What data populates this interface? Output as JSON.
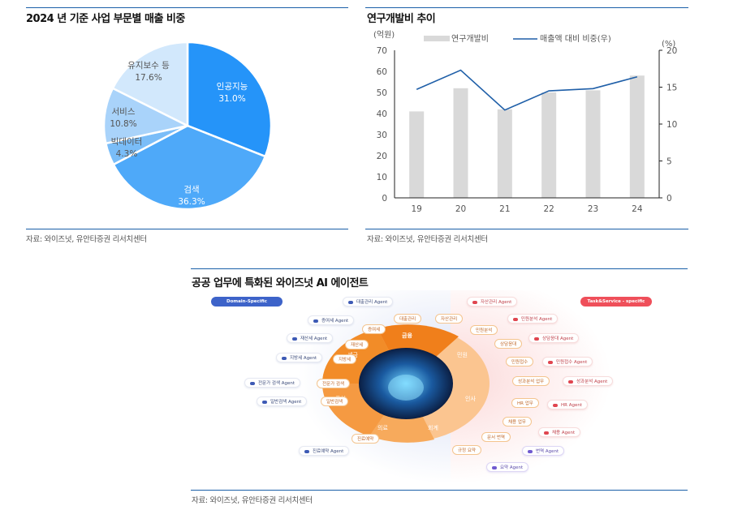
{
  "left_panel": {
    "title": "2024 년 기준 사업 부문별 매출 비중",
    "source": "자료: 와이즈넛, 유안타증권 리서치센터"
  },
  "right_panel": {
    "title": "연구개발비 추이",
    "source": "자료: 와이즈넛, 유안타증권 리서치센터",
    "left_unit": "(억원)",
    "right_unit": "(%)",
    "legend_bar": "연구개발비",
    "legend_line": "매출액 대비 비중(우)"
  },
  "bottom_panel": {
    "title": "공공 업무에 특화된 와이즈넛 AI 에이전트",
    "source": "자료: 와이즈넛, 유안타증권 리서치센터",
    "domain_badge": "Domain-Specific",
    "task_badge": "Task&Service - specific",
    "ring_segments": [
      "금융",
      "민원",
      "인사",
      "회계",
      "의료",
      "특허",
      "세금"
    ],
    "left_tasks": [
      "대출관리",
      "증여세",
      "재산세",
      "지방세",
      "전문가 검색",
      "일반검색",
      "진료예약"
    ],
    "left_agents": [
      "대출관리 Agent",
      "증여세 Agent",
      "재산세 Agent",
      "지방세 Agent",
      "전문가 검색 Agent",
      "일반검색 Agent",
      "진료예약 Agent"
    ],
    "right_tasks": [
      "자산관리",
      "민원분석",
      "상담응대",
      "민원접수",
      "성과분석 업무",
      "HR 업무",
      "채용 업무",
      "문서 번역",
      "규정 요약"
    ],
    "right_agents": [
      "자산관리 Agent",
      "민원분석 Agent",
      "상담응대 Agent",
      "민원접수 Agent",
      "성과분석 Agent",
      "HR Agent",
      "채용 Agent",
      "번역 Agent",
      "요약 Agent"
    ]
  },
  "colors": {
    "rule": "#1a5fa8",
    "bar": "#d9d9d9",
    "line": "#1f5fa8",
    "pie": [
      "#2594f9",
      "#4ea9f9",
      "#7abdf8",
      "#a9d3fa",
      "#d2e8fc"
    ],
    "ring_orange": "#f28c28",
    "domain_badge": "#3d63c9",
    "task_badge": "#ef4f5a"
  },
  "chart_data": [
    {
      "type": "pie",
      "title": "2024 년 기준 사업 부문별 매출 비중",
      "labels": [
        "인공지능",
        "검색",
        "빅데이터",
        "서비스",
        "유지보수 등"
      ],
      "values": [
        31.0,
        36.3,
        4.3,
        10.8,
        17.6
      ],
      "display": [
        "31.0%",
        "36.3%",
        "4.3%",
        "10.8%",
        "17.6%"
      ]
    },
    {
      "type": "bar",
      "title": "연구개발비 추이",
      "categories": [
        "19",
        "20",
        "21",
        "22",
        "23",
        "24"
      ],
      "series": [
        {
          "name": "연구개발비",
          "type": "bar",
          "axis": "left",
          "values": [
            41,
            52,
            42,
            50,
            51,
            58
          ]
        },
        {
          "name": "매출액 대비 비중(우)",
          "type": "line",
          "axis": "right",
          "values": [
            14.7,
            17.3,
            11.9,
            14.5,
            14.8,
            16.4
          ]
        }
      ],
      "ylabel": "(억원)",
      "y2label": "(%)",
      "ylim": [
        0,
        70
      ],
      "y2lim": [
        0,
        20
      ],
      "yticks": [
        "0",
        "10",
        "20",
        "30",
        "40",
        "50",
        "60",
        "70"
      ],
      "y2ticks": [
        "0",
        "5",
        "10",
        "15",
        "20"
      ],
      "legend_position": "top",
      "grid": false
    }
  ]
}
